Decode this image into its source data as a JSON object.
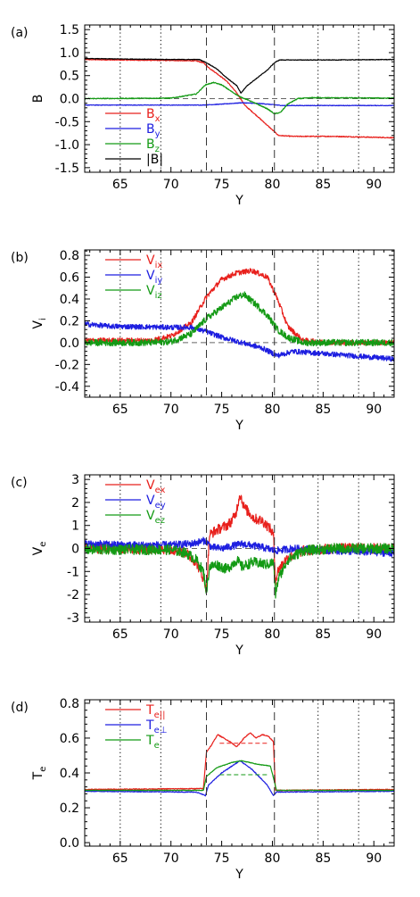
{
  "chart_data": [
    {
      "type": "line",
      "panel_label": "(a)",
      "xlabel": "Y",
      "ylabel": "B",
      "xlim": [
        61.5,
        92
      ],
      "ylim": [
        -1.6,
        1.6
      ],
      "x_ticks": [
        "65",
        "70",
        "75",
        "80",
        "85",
        "90"
      ],
      "y_ticks": [
        "1.5",
        "1.0",
        "0.5",
        "0.0",
        "-0.5",
        "-1.0",
        "-1.5"
      ],
      "dashed_x": [
        73.5,
        80.2
      ],
      "dotted_x": [
        65,
        69,
        84.5,
        88.5
      ],
      "hline": 0,
      "legend_position": "lower-left",
      "series": [
        {
          "name": "B",
          "sub": "x",
          "color": "#e8201c",
          "noise": 0.006,
          "x": [
            61.5,
            65,
            70,
            72.5,
            73.2,
            73.8,
            74.5,
            75.5,
            76.5,
            77.3,
            78.5,
            79.5,
            80.2,
            80.6,
            82,
            86,
            92
          ],
          "y": [
            0.85,
            0.84,
            0.83,
            0.82,
            0.78,
            0.66,
            0.55,
            0.38,
            0.12,
            -0.15,
            -0.38,
            -0.58,
            -0.72,
            -0.8,
            -0.82,
            -0.82,
            -0.85
          ]
        },
        {
          "name": "B",
          "sub": "y",
          "color": "#1d1ee0",
          "noise": 0.004,
          "x": [
            61.5,
            70,
            73,
            75,
            77,
            79,
            81,
            86,
            92
          ],
          "y": [
            -0.14,
            -0.14,
            -0.14,
            -0.12,
            -0.09,
            -0.11,
            -0.15,
            -0.15,
            -0.15
          ]
        },
        {
          "name": "B",
          "sub": "z",
          "color": "#139a14",
          "noise": 0.006,
          "x": [
            61.5,
            70,
            72.5,
            73.4,
            74.2,
            75,
            76,
            76.8,
            77.5,
            78.5,
            79.5,
            80.2,
            80.8,
            81.5,
            82.5,
            84,
            92
          ],
          "y": [
            0.0,
            0.01,
            0.1,
            0.3,
            0.35,
            0.3,
            0.15,
            0.04,
            -0.02,
            -0.12,
            -0.22,
            -0.33,
            -0.3,
            -0.12,
            0.0,
            0.02,
            0.01
          ]
        },
        {
          "name": "|B|",
          "sub": "",
          "color": "#000000",
          "noise": 0.004,
          "x": [
            61.5,
            70,
            72.8,
            73.5,
            74.5,
            75.5,
            76.5,
            76.9,
            77.5,
            78.5,
            79.5,
            80.2,
            80.7,
            86,
            92
          ],
          "y": [
            0.87,
            0.85,
            0.85,
            0.78,
            0.65,
            0.45,
            0.28,
            0.12,
            0.28,
            0.45,
            0.62,
            0.78,
            0.84,
            0.84,
            0.85
          ]
        }
      ]
    },
    {
      "type": "line",
      "panel_label": "(b)",
      "xlabel": "Y",
      "ylabel": "V",
      "ylabel_sub": "i",
      "xlim": [
        61.5,
        92
      ],
      "ylim": [
        -0.5,
        0.85
      ],
      "x_ticks": [
        "65",
        "70",
        "75",
        "80",
        "85",
        "90"
      ],
      "y_ticks": [
        "0.8",
        "0.6",
        "0.4",
        "0.2",
        "0.0",
        "-0.2",
        "-0.4"
      ],
      "dashed_x": [
        73.5,
        80.2
      ],
      "dotted_x": [
        65,
        69,
        84.5,
        88.5
      ],
      "hline": 0,
      "legend_position": "upper-left",
      "series": [
        {
          "name": "V",
          "sub": "ix",
          "color": "#e8201c",
          "noise": 0.035,
          "x": [
            61.5,
            68,
            70,
            72,
            73.5,
            75,
            76.5,
            78,
            79.5,
            80.5,
            81.5,
            83,
            86,
            92
          ],
          "y": [
            0.02,
            0.02,
            0.06,
            0.18,
            0.42,
            0.58,
            0.64,
            0.66,
            0.6,
            0.4,
            0.15,
            0.02,
            0.0,
            0.0
          ]
        },
        {
          "name": "V",
          "sub": "iy",
          "color": "#1d1ee0",
          "noise": 0.035,
          "x": [
            61.5,
            64,
            70,
            72,
            73.5,
            75,
            77,
            79,
            80.5,
            82,
            85,
            92
          ],
          "y": [
            0.17,
            0.15,
            0.14,
            0.14,
            0.1,
            0.05,
            0.0,
            -0.05,
            -0.12,
            -0.08,
            -0.1,
            -0.15
          ]
        },
        {
          "name": "V",
          "sub": "iz",
          "color": "#139a14",
          "noise": 0.045,
          "x": [
            61.5,
            68,
            70,
            72,
            73.5,
            75,
            76.5,
            77.2,
            78.5,
            79.5,
            80.5,
            81.5,
            83,
            92
          ],
          "y": [
            0.0,
            0.0,
            0.01,
            0.08,
            0.22,
            0.32,
            0.42,
            0.44,
            0.34,
            0.25,
            0.12,
            0.05,
            0.0,
            0.0
          ]
        }
      ]
    },
    {
      "type": "line",
      "panel_label": "(c)",
      "xlabel": "Y",
      "ylabel": "V",
      "ylabel_sub": "e",
      "xlim": [
        61.5,
        92
      ],
      "ylim": [
        -3.2,
        3.2
      ],
      "x_ticks": [
        "65",
        "70",
        "75",
        "80",
        "85",
        "90"
      ],
      "y_ticks": [
        "3",
        "2",
        "1",
        "0",
        "-1",
        "-2",
        "-3"
      ],
      "dashed_x": [
        73.5,
        80.2
      ],
      "dotted_x": [
        65,
        69,
        84.5,
        88.5
      ],
      "hline": 0,
      "legend_position": "upper-left",
      "series": [
        {
          "name": "V",
          "sub": "ex",
          "color": "#e8201c",
          "noise": 0.07,
          "x": [
            61.5,
            70,
            71.5,
            72.5,
            73.2,
            73.5,
            73.8,
            74.5,
            75.5,
            76,
            76.4,
            76.8,
            77.2,
            77.6,
            78.2,
            79,
            79.7,
            80.1,
            80.3,
            80.6,
            81.5,
            83,
            86,
            92
          ],
          "y": [
            0.0,
            -0.03,
            -0.2,
            -0.6,
            -1.3,
            -1.75,
            0.6,
            0.8,
            1.0,
            1.2,
            1.5,
            2.4,
            1.8,
            1.6,
            1.3,
            1.2,
            0.9,
            0.6,
            -1.4,
            -0.9,
            -0.4,
            -0.1,
            0.0,
            0.0
          ]
        },
        {
          "name": "V",
          "sub": "ey",
          "color": "#1d1ee0",
          "noise": 0.05,
          "x": [
            61.5,
            66,
            70,
            72,
            73.4,
            74,
            75,
            77,
            79,
            80.3,
            82,
            86,
            92
          ],
          "y": [
            0.2,
            0.15,
            0.15,
            0.2,
            0.35,
            0.05,
            0.0,
            0.2,
            0.05,
            -0.1,
            0.0,
            -0.1,
            -0.2
          ]
        },
        {
          "name": "V",
          "sub": "ez",
          "color": "#139a14",
          "noise": 0.07,
          "x": [
            61.5,
            70,
            71.5,
            72.5,
            73.2,
            73.5,
            73.8,
            74.5,
            75.5,
            76.5,
            77,
            78,
            79.5,
            80.1,
            80.3,
            80.6,
            81.5,
            83,
            86,
            92
          ],
          "y": [
            -0.05,
            -0.05,
            -0.2,
            -0.5,
            -1.0,
            -1.9,
            -0.8,
            -0.7,
            -0.9,
            -0.5,
            -0.8,
            -0.6,
            -0.7,
            -0.6,
            -2.0,
            -1.3,
            -0.5,
            -0.1,
            0.0,
            0.0
          ]
        }
      ]
    },
    {
      "type": "line",
      "panel_label": "(d)",
      "xlabel": "Y",
      "ylabel": "T",
      "ylabel_sub": "e",
      "xlim": [
        61.5,
        92
      ],
      "ylim": [
        -0.02,
        0.82
      ],
      "x_ticks": [
        "65",
        "70",
        "75",
        "80",
        "85",
        "90"
      ],
      "y_ticks": [
        "0.8",
        "0.6",
        "0.4",
        "0.2",
        "0.0"
      ],
      "dashed_x": [
        73.5,
        80.2
      ],
      "dotted_x": [
        65,
        69,
        84.5,
        88.5
      ],
      "hlines_dashed": [
        {
          "y": 0.57,
          "x0": 74.8,
          "x1": 79.5,
          "color": "#e8201c"
        },
        {
          "y": 0.39,
          "x0": 74.8,
          "x1": 79.5,
          "color": "#139a14"
        }
      ],
      "legend_position": "upper-left",
      "series": [
        {
          "name": "T",
          "sub": "e||",
          "color": "#e8201c",
          "noise": 0.006,
          "x": [
            61.5,
            73.2,
            73.5,
            74,
            74.6,
            75.2,
            75.8,
            76.5,
            77.2,
            77.8,
            78.4,
            79,
            79.6,
            80.1,
            80.3,
            92
          ],
          "y": [
            0.305,
            0.31,
            0.52,
            0.56,
            0.62,
            0.6,
            0.58,
            0.55,
            0.6,
            0.63,
            0.6,
            0.62,
            0.61,
            0.58,
            0.3,
            0.305
          ]
        },
        {
          "name": "T",
          "sub": "e⊥",
          "color": "#1d1ee0",
          "noise": 0.005,
          "x": [
            61.5,
            72.5,
            73.4,
            73.7,
            75,
            76.8,
            78,
            79.5,
            80.1,
            80.4,
            92
          ],
          "y": [
            0.295,
            0.29,
            0.27,
            0.33,
            0.4,
            0.47,
            0.42,
            0.33,
            0.27,
            0.29,
            0.295
          ]
        },
        {
          "name": "T",
          "sub": "e",
          "color": "#139a14",
          "noise": 0.004,
          "x": [
            61.5,
            73.2,
            73.5,
            74.5,
            76,
            77,
            78.5,
            79.8,
            80.2,
            80.4,
            92
          ],
          "y": [
            0.3,
            0.3,
            0.38,
            0.43,
            0.46,
            0.47,
            0.45,
            0.44,
            0.35,
            0.3,
            0.3
          ]
        }
      ]
    }
  ]
}
